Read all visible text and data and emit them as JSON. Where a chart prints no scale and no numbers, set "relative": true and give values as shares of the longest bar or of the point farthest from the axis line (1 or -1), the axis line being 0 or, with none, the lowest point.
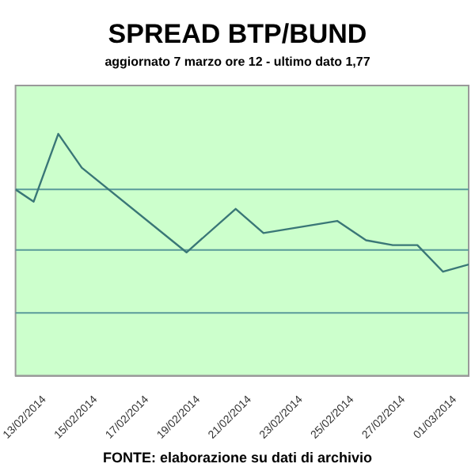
{
  "chart_data": {
    "type": "line",
    "title": "SPREAD BTP/BUND",
    "subtitle": "aggiornato 7 marzo ore 12 - ultimo dato 1,77",
    "annotations": [
      "FONTE: elaborazione su dati di archivio"
    ],
    "relative": true,
    "ref_lines": [
      {
        "axis": "y",
        "value": 0.26,
        "color": "#5a9a9a"
      },
      {
        "axis": "y",
        "value": 0.52,
        "color": "#5a9a9a"
      },
      {
        "axis": "y",
        "value": 0.77,
        "color": "#5a9a9a"
      }
    ],
    "legend": false,
    "marker": "none",
    "x": [
      "2014-02-11T21:00",
      "2014-02-12T14:00",
      "2014-02-13T13:00",
      "2014-02-14T11:00",
      "2014-02-18T13:00",
      "2014-02-20T11:00",
      "2014-02-21T13:00",
      "2014-02-24T10:00",
      "2014-02-25T13:00",
      "2014-02-26T14:00",
      "2014-02-27T13:00",
      "2014-02-28T13:00",
      "2014-03-01T13:00"
    ],
    "xlim": [
      "2014-02-11T21:00",
      "2014-03-01T13:00"
    ],
    "xticks": [
      {
        "value": "2014-02-13",
        "label": "13/02/2014"
      },
      {
        "value": "2014-02-15",
        "label": "15/02/2014"
      },
      {
        "value": "2014-02-17",
        "label": "17/02/2014"
      },
      {
        "value": "2014-02-19",
        "label": "19/02/2014"
      },
      {
        "value": "2014-02-21",
        "label": "21/02/2014"
      },
      {
        "value": "2014-02-23",
        "label": "23/02/2014"
      },
      {
        "value": "2014-02-25",
        "label": "25/02/2014"
      },
      {
        "value": "2014-02-27",
        "label": "27/02/2014"
      },
      {
        "value": "2014-03-01",
        "label": "01/03/2014"
      }
    ],
    "series": [
      {
        "color": "#3a7777",
        "values": [
          0.77,
          0.72,
          1,
          0.86,
          0.51,
          0.69,
          0.59,
          0.64,
          0.56,
          0.54,
          0.54,
          0.43,
          0.46
        ]
      }
    ]
  }
}
